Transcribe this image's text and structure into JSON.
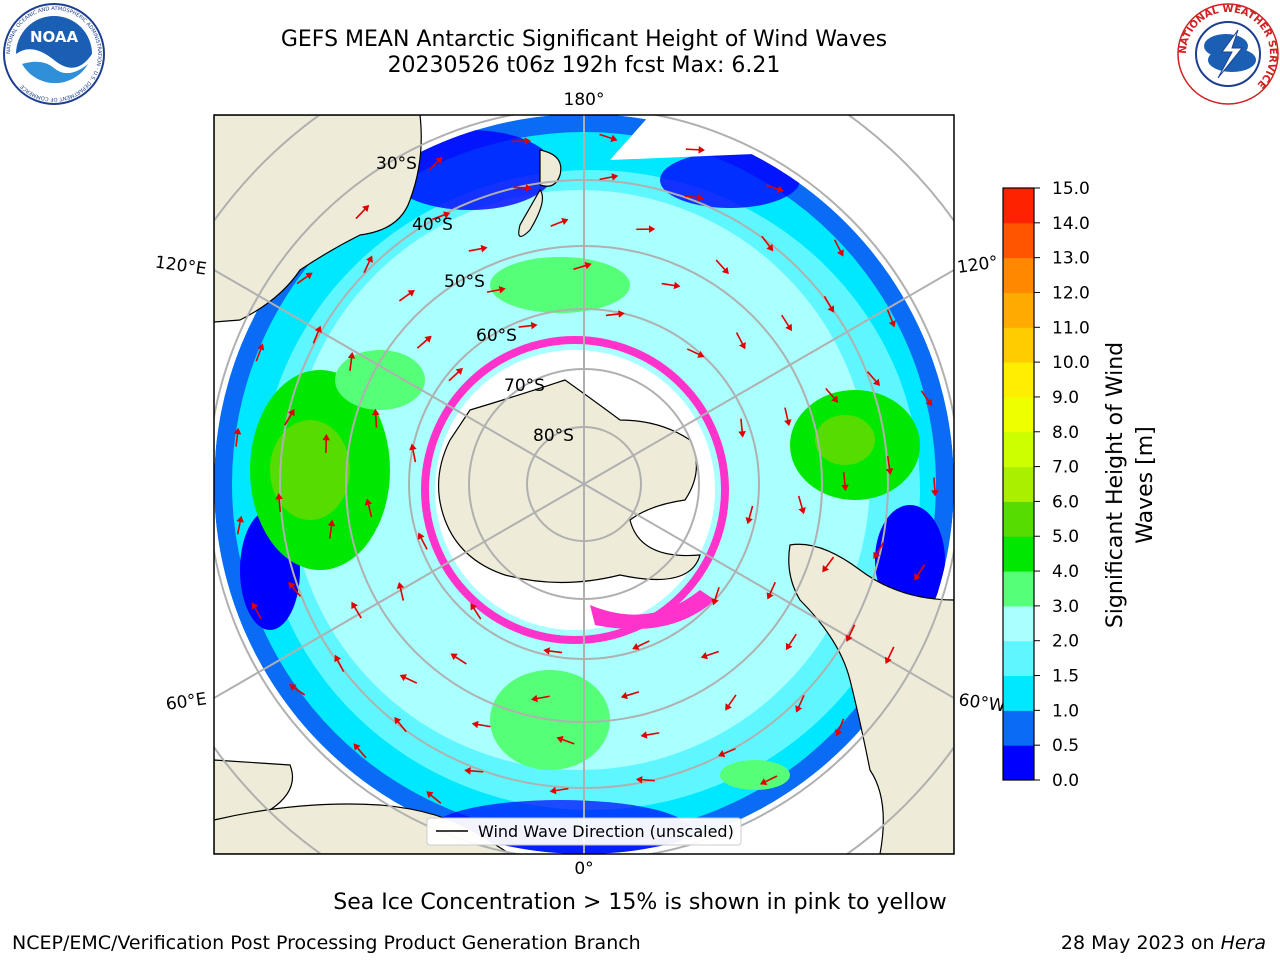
{
  "header": {
    "title_line1": "GEFS MEAN Antarctic Significant Height of Wind Waves",
    "title_line2": "20230526 t06z 192h fcst   Max: 6.21"
  },
  "logos": {
    "noaa": {
      "text": "NOAA",
      "ring_text": "NATIONAL OCEANIC AND ATMOSPHERIC ADMINISTRATION · U.S. DEPARTMENT OF COMMERCE"
    },
    "nws": {
      "ring_text": "NATIONAL WEATHER SERVICE"
    }
  },
  "map": {
    "projection": "south polar stereographic",
    "longitude_labels": [
      "180°",
      "120°E",
      "120°",
      "60°E",
      "60°W",
      "0°"
    ],
    "latitude_labels": [
      "30°S",
      "40°S",
      "50°S",
      "60°S",
      "70°S",
      "80°S"
    ],
    "legend_label": "Wind Wave Direction (unscaled)",
    "colors": {
      "land": "#eeecd8",
      "ice": "#ff33cc",
      "arrow": "#e00000"
    }
  },
  "colorbar": {
    "label": "Significant Height of Wind Waves [m]",
    "label_line1": "Significant Height of Wind",
    "label_line2": "Waves [m]",
    "ticks": [
      "0.0",
      "0.5",
      "1.0",
      "1.5",
      "2.0",
      "3.0",
      "4.0",
      "5.0",
      "6.0",
      "7.0",
      "8.0",
      "9.0",
      "10.0",
      "11.0",
      "12.0",
      "13.0",
      "14.0",
      "15.0"
    ],
    "colors": [
      "#0000ff",
      "#0a6cf5",
      "#00e8ff",
      "#5ff7ff",
      "#aaffff",
      "#55ff77",
      "#00e800",
      "#55dd00",
      "#aaee00",
      "#ccff00",
      "#eeff00",
      "#ffee00",
      "#ffcc00",
      "#ffaa00",
      "#ff8800",
      "#ff5500",
      "#ff2200"
    ]
  },
  "footer": {
    "note": "Sea Ice Concentration > 15% is shown in pink to yellow",
    "credit": "NCEP/EMC/Verification Post Processing Product Generation Branch",
    "date": "28 May 2023 on ",
    "machine": "Hera"
  }
}
